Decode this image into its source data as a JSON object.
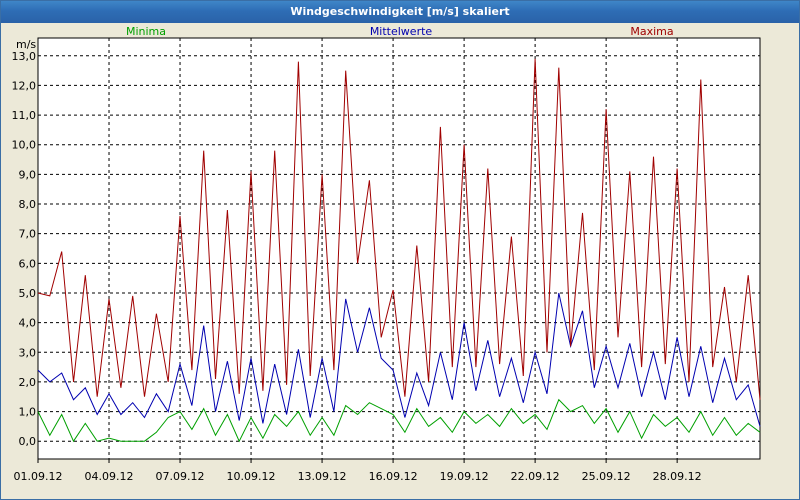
{
  "window": {
    "title": "Windgeschwindigkeit [m/s] skaliert"
  },
  "chart_data": {
    "type": "line",
    "title": "Windgeschwindigkeit [m/s] skaliert",
    "ylabel": "m/s",
    "xlabel": "",
    "ylim": [
      -0.6,
      13.6
    ],
    "yticks": [
      "0,0",
      "1,0",
      "2,0",
      "3,0",
      "4,0",
      "5,0",
      "6,0",
      "7,0",
      "8,0",
      "9,0",
      "10,0",
      "11,0",
      "12,0",
      "13,0"
    ],
    "x_tick_labels": [
      "01.09.12",
      "04.09.12",
      "07.09.12",
      "10.09.12",
      "13.09.12",
      "16.09.12",
      "19.09.12",
      "22.09.12",
      "25.09.12",
      "28.09.12"
    ],
    "x_tick_days": [
      0,
      3,
      6,
      9,
      12,
      15,
      18,
      21,
      24,
      27
    ],
    "x_days_range": [
      0,
      30.5
    ],
    "grid": true,
    "legend_position": "top",
    "series": [
      {
        "name": "Minima",
        "color": "#00a000",
        "x_days": [
          0,
          0.5,
          1,
          1.5,
          2,
          2.5,
          3,
          3.5,
          4,
          4.5,
          5,
          5.5,
          6,
          6.5,
          7,
          7.5,
          8,
          8.5,
          9,
          9.5,
          10,
          10.5,
          11,
          11.5,
          12,
          12.5,
          13,
          13.5,
          14,
          14.5,
          15,
          15.5,
          16,
          16.5,
          17,
          17.5,
          18,
          18.5,
          19,
          19.5,
          20,
          20.5,
          21,
          21.5,
          22,
          22.5,
          23,
          23.5,
          24,
          24.5,
          25,
          25.5,
          26,
          26.5,
          27,
          27.5,
          28,
          28.5,
          29,
          29.5,
          30,
          30.5
        ],
        "values": [
          1.0,
          0.2,
          0.9,
          0.0,
          0.6,
          0.0,
          0.1,
          0.0,
          0.0,
          0.0,
          0.3,
          0.8,
          1.0,
          0.4,
          1.1,
          0.2,
          0.9,
          0.0,
          0.8,
          0.1,
          0.9,
          0.5,
          1.0,
          0.2,
          0.8,
          0.2,
          1.2,
          0.9,
          1.3,
          1.1,
          0.9,
          0.3,
          1.1,
          0.5,
          0.8,
          0.3,
          1.0,
          0.6,
          0.9,
          0.5,
          1.1,
          0.6,
          0.9,
          0.4,
          1.4,
          1.0,
          1.2,
          0.6,
          1.1,
          0.3,
          1.0,
          0.1,
          0.9,
          0.5,
          0.8,
          0.3,
          1.0,
          0.2,
          0.8,
          0.2,
          0.6,
          0.3
        ]
      },
      {
        "name": "Mittelwerte",
        "color": "#0000b0",
        "x_days": [
          0,
          0.5,
          1,
          1.5,
          2,
          2.5,
          3,
          3.5,
          4,
          4.5,
          5,
          5.5,
          6,
          6.5,
          7,
          7.5,
          8,
          8.5,
          9,
          9.5,
          10,
          10.5,
          11,
          11.5,
          12,
          12.5,
          13,
          13.5,
          14,
          14.5,
          15,
          15.5,
          16,
          16.5,
          17,
          17.5,
          18,
          18.5,
          19,
          19.5,
          20,
          20.5,
          21,
          21.5,
          22,
          22.5,
          23,
          23.5,
          24,
          24.5,
          25,
          25.5,
          26,
          26.5,
          27,
          27.5,
          28,
          28.5,
          29,
          29.5,
          30,
          30.5
        ],
        "values": [
          2.4,
          2.0,
          2.3,
          1.4,
          1.8,
          0.9,
          1.6,
          0.9,
          1.3,
          0.8,
          1.6,
          1.0,
          2.6,
          1.2,
          3.9,
          1.0,
          2.7,
          0.7,
          2.8,
          0.6,
          2.6,
          0.9,
          3.1,
          0.8,
          2.8,
          1.0,
          4.8,
          3.0,
          4.5,
          2.8,
          2.4,
          0.8,
          2.3,
          1.2,
          3.0,
          1.4,
          4.0,
          1.7,
          3.4,
          1.5,
          2.8,
          1.3,
          3.0,
          1.6,
          5.0,
          3.2,
          4.4,
          1.8,
          3.2,
          1.8,
          3.3,
          1.5,
          3.0,
          1.4,
          3.5,
          1.5,
          3.2,
          1.3,
          2.8,
          1.4,
          1.9,
          0.5
        ]
      },
      {
        "name": "Maxima",
        "color": "#a00000",
        "x_days": [
          0,
          0.5,
          1,
          1.5,
          2,
          2.5,
          3,
          3.5,
          4,
          4.5,
          5,
          5.5,
          6,
          6.5,
          7,
          7.5,
          8,
          8.5,
          9,
          9.5,
          10,
          10.5,
          11,
          11.5,
          12,
          12.5,
          13,
          13.5,
          14,
          14.5,
          15,
          15.5,
          16,
          16.5,
          17,
          17.5,
          18,
          18.5,
          19,
          19.5,
          20,
          20.5,
          21,
          21.5,
          22,
          22.5,
          23,
          23.5,
          24,
          24.5,
          25,
          25.5,
          26,
          26.5,
          27,
          27.5,
          28,
          28.5,
          29,
          29.5,
          30,
          30.5
        ],
        "values": [
          5.0,
          4.9,
          6.4,
          2.0,
          5.6,
          1.5,
          4.8,
          1.8,
          4.9,
          1.5,
          4.3,
          2.0,
          7.6,
          2.4,
          9.8,
          2.1,
          7.8,
          1.6,
          9.1,
          1.7,
          9.8,
          1.9,
          12.8,
          2.2,
          9.0,
          2.4,
          12.5,
          6.0,
          8.8,
          3.5,
          5.1,
          1.5,
          6.6,
          2.0,
          10.6,
          2.5,
          10.0,
          2.5,
          9.2,
          2.6,
          6.9,
          2.2,
          12.9,
          3.0,
          12.6,
          3.2,
          7.7,
          2.4,
          11.2,
          3.5,
          9.1,
          2.5,
          9.6,
          2.6,
          9.2,
          2.0,
          12.2,
          2.5,
          5.2,
          2.0,
          5.6,
          1.4
        ]
      }
    ]
  }
}
